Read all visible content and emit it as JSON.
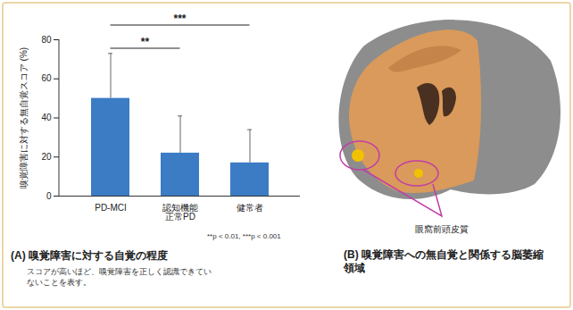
{
  "chart_data": {
    "type": "bar",
    "title": "(A) 嗅覚障害に対する自覚の程度",
    "subtitle": "スコアが高いほど、嗅覚障害を正しく認識できていないことを表す。",
    "ylabel": "嗅覚障害に対する無自覚スコア (%)",
    "categories": [
      "PD-MCI",
      "認知機能正常PD",
      "健常者"
    ],
    "values": [
      50,
      22,
      17
    ],
    "error": [
      23,
      19,
      17
    ],
    "color": "#3b7cc5",
    "ylim": [
      0,
      80
    ],
    "yticks": [
      0,
      20,
      40,
      60,
      80
    ],
    "grid": false,
    "significance": [
      {
        "from": "PD-MCI",
        "to": "認知機能正常PD",
        "label": "**"
      },
      {
        "from": "PD-MCI",
        "to": "健常者",
        "label": "***"
      }
    ],
    "note": "**p < 0.01, ***p < 0.001"
  },
  "image_panel": {
    "title": "(B) 嗅覚障害への無自覚と関係する脳萎縮領域",
    "region_label": "眼窩前頭皮質"
  }
}
